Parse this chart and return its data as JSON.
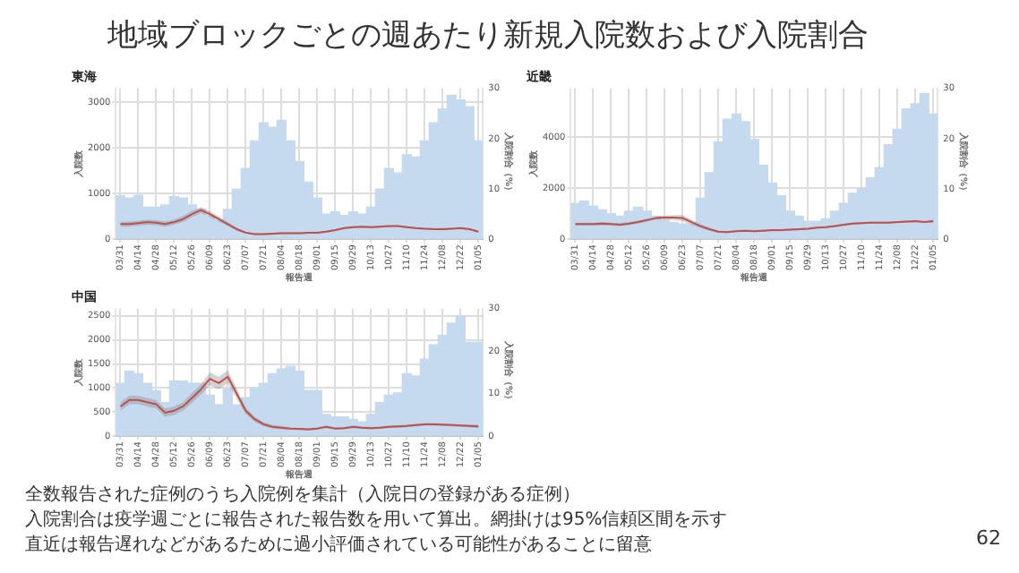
{
  "chart_data": [
    {
      "type": "other",
      "title": "地域ブロックごとの週あたり新規入院数および入院割合",
      "annotations": [
        "全数報告された症例のうち入院例を集計（入院日の登録がある症例）",
        "入院割合は疫学週ごとに報告された報告数を用いて算出。網掛けは95%信頼区間を示す",
        "直近は報告遅れなどがあるために過小評価されている可能性があることに留意",
        "62"
      ]
    },
    {
      "type": "bar",
      "title": "東海",
      "xlabel": "報告週",
      "ylabel": "入院数",
      "y2label": "入院割合（%）",
      "categories": [
        "03/31",
        null,
        "04/14",
        null,
        "04/28",
        null,
        "05/12",
        null,
        "05/26",
        null,
        "06/09",
        null,
        "06/23",
        null,
        "07/07",
        null,
        "07/21",
        null,
        "08/04",
        null,
        "08/18",
        null,
        "09/01",
        null,
        "09/15",
        null,
        "09/29",
        null,
        "10/13",
        null,
        "10/27",
        null,
        "11/10",
        null,
        "11/24",
        null,
        "12/08",
        null,
        "12/22",
        null,
        "01/05"
      ],
      "series": [
        {
          "type": "bar",
          "color": "#c5d9ef",
          "values": [
            950,
            900,
            960,
            700,
            700,
            750,
            930,
            900,
            750,
            650,
            500,
            400,
            650,
            1100,
            1550,
            2150,
            2550,
            2450,
            2600,
            2150,
            1700,
            1250,
            900,
            550,
            600,
            520,
            600,
            550,
            700,
            1100,
            1550,
            1450,
            1850,
            1800,
            2150,
            2550,
            2850,
            3150,
            3050,
            2900,
            2150
          ]
        },
        {
          "type": "line",
          "axis": "y2",
          "color": "#c0504d",
          "values": [
            3,
            3,
            3.2,
            3.4,
            3.3,
            3,
            3.4,
            4,
            5,
            5.8,
            5,
            4,
            3,
            2,
            1.3,
            1,
            1,
            1.1,
            1.2,
            1.2,
            1.2,
            1.3,
            1.3,
            1.5,
            1.8,
            2.2,
            2.4,
            2.5,
            2.4,
            2.5,
            2.6,
            2.6,
            2.4,
            2.2,
            2.1,
            2,
            2,
            2.1,
            2.2,
            2,
            1.5
          ],
          "lower": [
            2.5,
            2.5,
            2.7,
            2.9,
            2.8,
            2.5,
            2.9,
            3.4,
            4.4,
            5.2,
            4.4,
            3.5,
            2.6,
            1.7,
            1.1,
            0.8,
            0.8,
            0.9,
            1,
            1,
            1,
            1.1,
            1.1,
            1.3,
            1.6,
            2,
            2.2,
            2.3,
            2.2,
            2.3,
            2.4,
            2.4,
            2.2,
            2,
            1.9,
            1.8,
            1.8,
            1.9,
            2,
            1.8,
            1.3
          ],
          "upper": [
            3.5,
            3.5,
            3.7,
            3.9,
            3.8,
            3.5,
            3.9,
            4.6,
            5.6,
            6.4,
            5.6,
            4.5,
            3.4,
            2.3,
            1.5,
            1.2,
            1.2,
            1.3,
            1.4,
            1.4,
            1.4,
            1.5,
            1.5,
            1.7,
            2,
            2.4,
            2.6,
            2.7,
            2.6,
            2.7,
            2.8,
            2.8,
            2.6,
            2.4,
            2.3,
            2.2,
            2.2,
            2.3,
            2.4,
            2.2,
            1.7
          ]
        }
      ],
      "ylim": [
        0,
        3300
      ],
      "yticks": [
        0,
        1000,
        2000,
        3000
      ],
      "y2lim": [
        0,
        30
      ],
      "y2ticks": [
        0,
        10,
        20,
        30
      ],
      "grid": true,
      "legend": false
    },
    {
      "type": "bar",
      "title": "近畿",
      "xlabel": "報告週",
      "ylabel": "入院数",
      "y2label": "入院割合（%）",
      "categories": [
        "03/31",
        null,
        "04/14",
        null,
        "04/28",
        null,
        "05/12",
        null,
        "05/26",
        null,
        "06/09",
        null,
        "06/23",
        null,
        "07/07",
        null,
        "07/21",
        null,
        "08/04",
        null,
        "08/18",
        null,
        "09/01",
        null,
        "09/15",
        null,
        "09/29",
        null,
        "10/13",
        null,
        "10/27",
        null,
        "11/10",
        null,
        "11/24",
        null,
        "12/08",
        null,
        "12/22",
        null,
        "01/05"
      ],
      "series": [
        {
          "type": "bar",
          "color": "#c5d9ef",
          "values": [
            1400,
            1500,
            1300,
            1150,
            1000,
            900,
            1100,
            1250,
            1100,
            900,
            750,
            650,
            600,
            600,
            1600,
            2600,
            3800,
            4700,
            4900,
            4600,
            3900,
            2900,
            2200,
            1700,
            1100,
            900,
            700,
            700,
            800,
            1100,
            1400,
            1800,
            2000,
            2400,
            2800,
            3700,
            4300,
            5100,
            5300,
            5700,
            4900
          ]
        },
        {
          "type": "line",
          "axis": "y2",
          "color": "#c0504d",
          "values": [
            3,
            3,
            3,
            3.1,
            3,
            2.9,
            3.1,
            3.4,
            3.8,
            4.2,
            4.3,
            4.3,
            4.2,
            3.4,
            2.6,
            2,
            1.5,
            1.4,
            1.6,
            1.7,
            1.6,
            1.7,
            1.8,
            1.8,
            1.9,
            2,
            2.1,
            2.3,
            2.4,
            2.6,
            2.9,
            3.1,
            3.2,
            3.3,
            3.3,
            3.3,
            3.4,
            3.5,
            3.6,
            3.4,
            3.6
          ],
          "lower": [
            2.7,
            2.7,
            2.7,
            2.8,
            2.7,
            2.6,
            2.8,
            3.1,
            3.5,
            3.9,
            3.9,
            3.8,
            3.6,
            2.9,
            2.2,
            1.7,
            1.3,
            1.2,
            1.4,
            1.5,
            1.4,
            1.5,
            1.6,
            1.6,
            1.7,
            1.8,
            1.9,
            2.1,
            2.2,
            2.4,
            2.7,
            2.9,
            3,
            3.1,
            3.1,
            3.1,
            3.2,
            3.3,
            3.4,
            3.2,
            3.3
          ],
          "upper": [
            3.3,
            3.3,
            3.3,
            3.4,
            3.3,
            3.2,
            3.4,
            3.7,
            4.1,
            4.5,
            4.7,
            4.8,
            4.8,
            3.9,
            3,
            2.3,
            1.7,
            1.6,
            1.8,
            1.9,
            1.8,
            1.9,
            2,
            2,
            2.1,
            2.2,
            2.3,
            2.5,
            2.6,
            2.8,
            3.1,
            3.3,
            3.4,
            3.5,
            3.5,
            3.5,
            3.6,
            3.7,
            3.8,
            3.6,
            3.9
          ]
        }
      ],
      "ylim": [
        0,
        5900
      ],
      "yticks": [
        0,
        2000,
        4000
      ],
      "y2lim": [
        0,
        30
      ],
      "y2ticks": [
        0,
        10,
        20,
        30
      ],
      "grid": true,
      "legend": false
    },
    {
      "type": "bar",
      "title": "中国",
      "xlabel": "報告週",
      "ylabel": "入院数",
      "y2label": "入院割合（%）",
      "categories": [
        "03/31",
        null,
        "04/14",
        null,
        "04/28",
        null,
        "05/12",
        null,
        "05/26",
        null,
        "06/09",
        null,
        "06/23",
        null,
        "07/07",
        null,
        "07/21",
        null,
        "08/04",
        null,
        "08/18",
        null,
        "09/01",
        null,
        "09/15",
        null,
        "09/29",
        null,
        "10/13",
        null,
        "10/27",
        null,
        "11/10",
        null,
        "11/24",
        null,
        "12/08",
        null,
        "12/22",
        null,
        "01/05"
      ],
      "series": [
        {
          "type": "bar",
          "color": "#c5d9ef",
          "values": [
            1100,
            1350,
            1300,
            1100,
            950,
            700,
            1150,
            1150,
            1100,
            1100,
            850,
            650,
            1000,
            650,
            800,
            1000,
            1100,
            1300,
            1400,
            1450,
            1350,
            950,
            950,
            450,
            400,
            400,
            350,
            300,
            450,
            700,
            850,
            900,
            1300,
            1250,
            1600,
            1900,
            2100,
            2350,
            2500,
            1950,
            1950
          ]
        },
        {
          "type": "line",
          "axis": "y2",
          "color": "#c0504d",
          "values": [
            7,
            8.5,
            8.5,
            8,
            7.5,
            5.5,
            6,
            7,
            9,
            11,
            13.5,
            12.5,
            14,
            10,
            6,
            4,
            2.8,
            2.2,
            2,
            1.8,
            1.7,
            1.6,
            1.8,
            2.2,
            1.8,
            1.9,
            2.2,
            2,
            1.9,
            2,
            2.2,
            2.3,
            2.4,
            2.6,
            2.8,
            2.8,
            2.7,
            2.6,
            2.5,
            2.4,
            2.3
          ],
          "lower": [
            6,
            7.5,
            7.5,
            7,
            6.5,
            4.5,
            5,
            6,
            7.8,
            9.8,
            12,
            11,
            12.5,
            8.8,
            5.2,
            3.4,
            2.3,
            1.8,
            1.6,
            1.5,
            1.4,
            1.3,
            1.5,
            1.9,
            1.5,
            1.6,
            1.9,
            1.7,
            1.6,
            1.7,
            1.9,
            2,
            2.1,
            2.3,
            2.5,
            2.5,
            2.4,
            2.3,
            2.2,
            2.1,
            1.9
          ],
          "upper": [
            8,
            9.5,
            9.5,
            9,
            8.5,
            6.5,
            7,
            8,
            10.2,
            12.2,
            15,
            14,
            15.5,
            11.2,
            6.8,
            4.6,
            3.3,
            2.6,
            2.4,
            2.1,
            2,
            1.9,
            2.1,
            2.5,
            2.1,
            2.2,
            2.5,
            2.3,
            2.2,
            2.3,
            2.5,
            2.6,
            2.7,
            2.9,
            3.1,
            3.1,
            3,
            2.9,
            2.8,
            2.7,
            2.7
          ]
        }
      ],
      "ylim": [
        0,
        2650
      ],
      "yticks": [
        0,
        500,
        1000,
        1500,
        2000,
        2500
      ],
      "y2lim": [
        0,
        30
      ],
      "y2ticks": [
        0,
        10,
        20,
        30
      ],
      "grid": true,
      "legend": false
    }
  ]
}
